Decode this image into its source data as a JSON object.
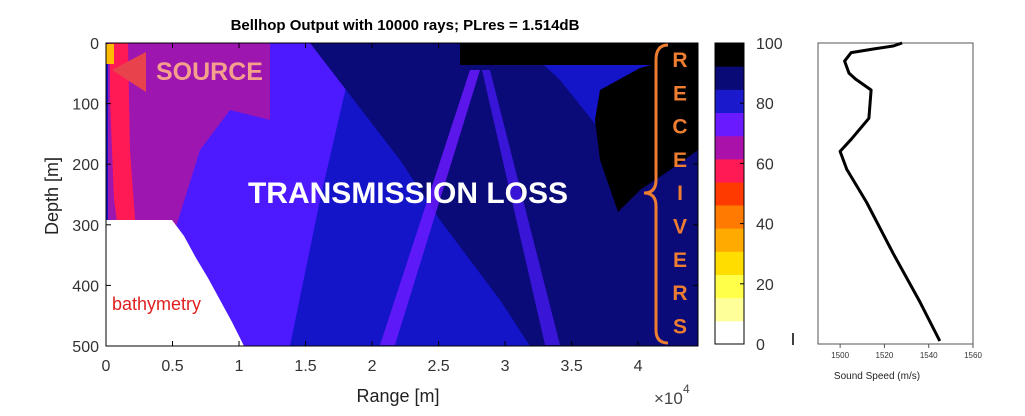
{
  "chart_data": [
    {
      "type": "heatmap",
      "title": "Bellhop Output with 10000 rays; PLres = 1.514dB",
      "xlabel": "Range [m]",
      "ylabel": "Depth [m]",
      "x_exponent_label": "×10",
      "x_exponent_power": "4",
      "xlim": [
        0,
        4.45
      ],
      "ylim": [
        0,
        500
      ],
      "x_ticks": [
        0,
        0.5,
        1,
        1.5,
        2,
        2.5,
        3,
        3.5,
        4
      ],
      "x_tick_labels": [
        "0",
        "0.5",
        "1",
        "1.5",
        "2",
        "2.5",
        "3",
        "3.5",
        "4"
      ],
      "y_ticks": [
        0,
        100,
        200,
        300,
        400,
        500
      ],
      "y_tick_labels": [
        "0",
        "100",
        "200",
        "300",
        "400",
        "500"
      ],
      "bathymetry": [
        [
          0,
          292
        ],
        [
          0.47,
          292
        ],
        [
          1.02,
          500
        ]
      ],
      "colorbar": {
        "range": [
          0,
          100
        ],
        "ticks": [
          0,
          20,
          40,
          60,
          80,
          100
        ],
        "tick_labels": [
          "0",
          "20",
          "40",
          "60",
          "80",
          "100"
        ],
        "levels": [
          {
            "from": 0,
            "to": 7.7,
            "color": "#ffffff"
          },
          {
            "from": 7.7,
            "to": 15.4,
            "color": "#ffff9a"
          },
          {
            "from": 15.4,
            "to": 23.1,
            "color": "#ffff4a"
          },
          {
            "from": 23.1,
            "to": 30.8,
            "color": "#ffdd00"
          },
          {
            "from": 30.8,
            "to": 38.5,
            "color": "#ffaa00"
          },
          {
            "from": 38.5,
            "to": 46.2,
            "color": "#ff7a00"
          },
          {
            "from": 46.2,
            "to": 53.8,
            "color": "#ff3a00"
          },
          {
            "from": 53.8,
            "to": 61.5,
            "color": "#ff1a55"
          },
          {
            "from": 61.5,
            "to": 69.2,
            "color": "#aa11aa"
          },
          {
            "from": 69.2,
            "to": 76.9,
            "color": "#6a1aff"
          },
          {
            "from": 76.9,
            "to": 84.6,
            "color": "#1a1acc"
          },
          {
            "from": 84.6,
            "to": 92.3,
            "color": "#0a0a77"
          },
          {
            "from": 92.3,
            "to": 100,
            "color": "#000000"
          }
        ]
      },
      "annotations": {
        "source": "SOURCE",
        "transmission_loss": "TRANSMISSION LOSS",
        "bathymetry": "bathymetry",
        "receivers": [
          "R",
          "E",
          "C",
          "E",
          "I",
          "V",
          "E",
          "R",
          "S"
        ]
      }
    },
    {
      "type": "line",
      "xlabel": "Sound Speed (m/s)",
      "x_ticks": [
        1500,
        1520,
        1540,
        1560
      ],
      "x_tick_labels": [
        "1500",
        "1520",
        "1540",
        "1560"
      ],
      "xlim": [
        1490,
        1560
      ],
      "ylim": [
        0,
        500
      ],
      "series": [
        {
          "x": [
            1528,
            1524,
            1515,
            1505,
            1502,
            1504,
            1507,
            1514,
            1513,
            1505,
            1500,
            1503,
            1512,
            1524,
            1536,
            1545
          ],
          "y": [
            0,
            5,
            10,
            16,
            30,
            50,
            60,
            78,
            125,
            160,
            180,
            210,
            265,
            350,
            430,
            495
          ]
        }
      ]
    }
  ],
  "colors": {
    "source_marker": "#e8434c",
    "source_text": "#f4a08c",
    "annotation_white": "#ffffff",
    "bathymetry_text": "#e02020",
    "receiver_text": "#ed7d31"
  }
}
